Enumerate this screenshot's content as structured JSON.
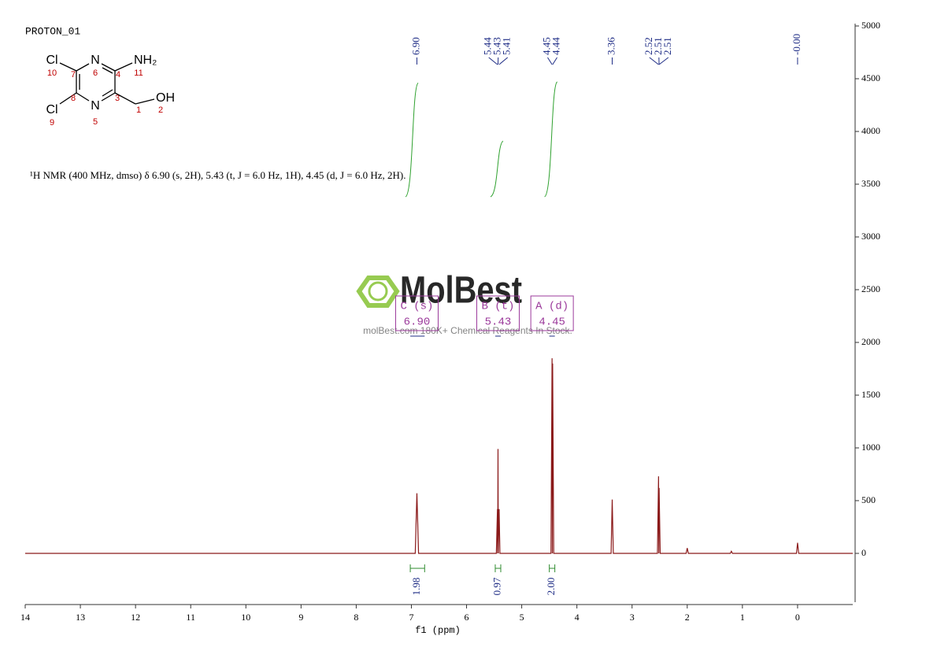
{
  "chart_data": {
    "type": "line",
    "title": "PROTON_01",
    "description": "¹H NMR (400 MHz, dmso) δ 6.90 (s, 2H), 5.43 (t, J = 6.0 Hz, 1H), 4.45 (d, J = 6.0 Hz, 2H).",
    "x_label": "f1 (ppm)",
    "color": "#8b1a1a",
    "x": [
      14,
      6.93,
      6.9,
      6.87,
      5.46,
      5.44,
      5.435,
      5.43,
      5.425,
      5.41,
      5.395,
      4.47,
      4.45,
      4.445,
      4.44,
      4.42,
      3.38,
      3.36,
      3.34,
      2.54,
      2.52,
      2.515,
      2.51,
      2.49,
      2.02,
      2.0,
      1.98,
      1.22,
      1.2,
      1.18,
      0.02,
      0.0,
      -0.02,
      -1
    ],
    "values": [
      0,
      0,
      570,
      0,
      0,
      420,
      0,
      990,
      0,
      420,
      0,
      0,
      1850,
      0,
      1800,
      0,
      0,
      510,
      0,
      0,
      730,
      0,
      620,
      0,
      0,
      50,
      0,
      0,
      20,
      0,
      0,
      100,
      0,
      0
    ],
    "xlim": [
      14,
      -1
    ],
    "ylim": [
      -500,
      5000
    ],
    "xticks": [
      14,
      13,
      12,
      11,
      10,
      9,
      8,
      7,
      6,
      5,
      4,
      3,
      2,
      1,
      0
    ],
    "yticks": [
      0,
      500,
      1000,
      1500,
      2000,
      2500,
      3000,
      3500,
      4000,
      4500,
      5000
    ],
    "peak_labels": [
      {
        "value": 6.9,
        "label": "6.90"
      },
      {
        "value": 5.44,
        "label": "5.44"
      },
      {
        "value": 5.43,
        "label": "5.43"
      },
      {
        "value": 5.41,
        "label": "5.41"
      },
      {
        "value": 4.45,
        "label": "4.45"
      },
      {
        "value": 4.44,
        "label": "4.44"
      },
      {
        "value": 3.36,
        "label": "3.36"
      },
      {
        "value": 2.52,
        "label": "2.52"
      },
      {
        "value": 2.51,
        "label": "2.51"
      },
      {
        "value": 2.51,
        "label": "2.51"
      },
      {
        "value": 0,
        "label": "-0.00"
      }
    ],
    "multiplets": [
      {
        "name": "C (s)",
        "shift": {
          "value": 6.9,
          "label": "6.90"
        },
        "range": [
          7.02,
          6.76
        ],
        "integral": 1.98
      },
      {
        "name": "B (t)",
        "shift": {
          "value": 5.43,
          "label": "5.43"
        },
        "range": [
          5.48,
          5.38
        ],
        "integral": 0.97
      },
      {
        "name": "A (d)",
        "shift": {
          "value": 4.45,
          "label": "4.45"
        },
        "range": [
          4.5,
          4.4
        ],
        "integral": {
          "value": 2,
          "label": "2.00"
        }
      }
    ]
  },
  "structure": {
    "atoms": [
      "Cl",
      "N",
      "NH₂",
      "Cl",
      "N",
      "OH"
    ],
    "numbers": [
      "10",
      "7",
      "6",
      "4",
      "11",
      "8",
      "3",
      "9",
      "5",
      "1",
      "2"
    ]
  },
  "watermark": {
    "brand": "MolBest",
    "tagline": "molBest.com 180K+ Chemical Reagents In Stock."
  }
}
